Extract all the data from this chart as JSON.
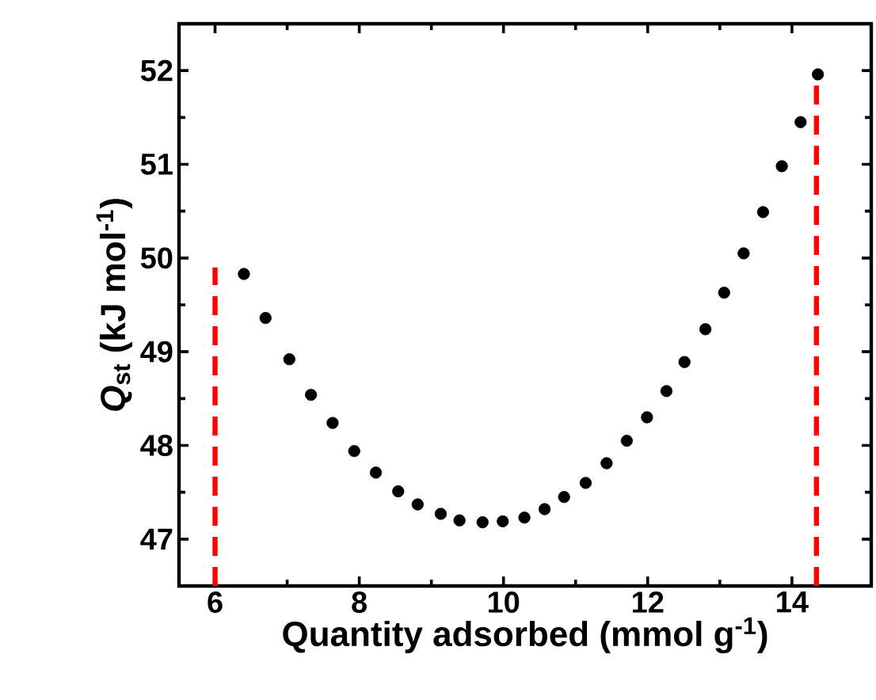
{
  "chart_data": {
    "type": "scatter",
    "xlabel": "Quantity adsorbed (mmol g$^{-1}$)",
    "ylabel": "*Q*$_{st}$ (kJ mol$^{-1}$)",
    "xlim": [
      5.5,
      15.1
    ],
    "ylim": [
      46.5,
      52.5
    ],
    "xticks": [
      6,
      8,
      10,
      12,
      14
    ],
    "yticks": [
      47,
      48,
      49,
      50,
      51,
      52
    ],
    "grid": false,
    "series": [
      {
        "color": "#000000",
        "marker": "circle",
        "x": [
          6.4,
          6.7,
          7.03,
          7.33,
          7.63,
          7.93,
          8.23,
          8.54,
          8.81,
          9.13,
          9.39,
          9.71,
          9.99,
          10.29,
          10.57,
          10.84,
          11.14,
          11.43,
          11.71,
          11.99,
          12.26,
          12.51,
          12.8,
          13.06,
          13.33,
          13.6,
          13.86,
          14.12,
          14.36
        ],
        "values": [
          49.83,
          49.36,
          48.92,
          48.54,
          48.24,
          47.94,
          47.71,
          47.51,
          47.37,
          47.27,
          47.2,
          47.18,
          47.19,
          47.23,
          47.32,
          47.45,
          47.6,
          47.81,
          48.05,
          48.3,
          48.58,
          48.89,
          49.24,
          49.63,
          50.05,
          50.49,
          50.98,
          51.45,
          51.96
        ]
      },
      {
        "type": "line",
        "color": "#ff0000",
        "line_style": "dashed",
        "marker": "none",
        "x": [
          6,
          6
        ],
        "values": [
          46.5,
          49.9
        ]
      },
      {
        "type": "line",
        "color": "#ff0000",
        "line_style": "dashed",
        "marker": "none",
        "x": [
          14.34,
          14.34
        ],
        "values": [
          46.5,
          51.96
        ]
      }
    ]
  }
}
